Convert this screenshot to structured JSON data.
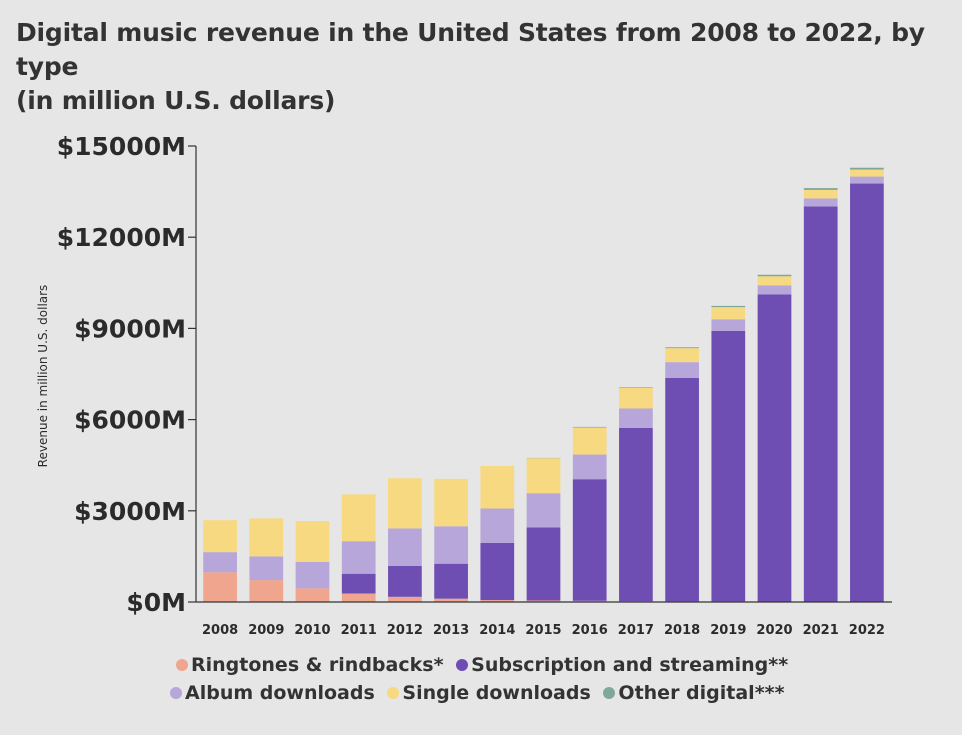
{
  "title_line1": "Digital music revenue in the United States from 2008 to 2022, by type",
  "title_line2": "(in million U.S. dollars)",
  "chart_data": {
    "type": "bar",
    "stacked": true,
    "title": "Digital music revenue in the United States from 2008 to 2022, by type (in million U.S. dollars)",
    "ylabel": "Revenue in million U.S. dollars",
    "xlabel": "",
    "ylim": [
      0,
      15000
    ],
    "yticks": [
      0,
      3000,
      6000,
      9000,
      12000,
      15000
    ],
    "ytick_labels": [
      "$0M",
      "$3000M",
      "$6000M",
      "$9000M",
      "$12000M",
      "$15000M"
    ],
    "categories": [
      "2008",
      "2009",
      "2010",
      "2011",
      "2012",
      "2013",
      "2014",
      "2015",
      "2016",
      "2017",
      "2018",
      "2019",
      "2020",
      "2021",
      "2022"
    ],
    "series": [
      {
        "name": "Ringtones & rindbacks*",
        "color": "#f0a58f",
        "values": [
          980,
          720,
          450,
          280,
          170,
          110,
          65,
          50,
          40,
          25,
          20,
          20,
          15,
          15,
          15
        ]
      },
      {
        "name": "Subscription and streaming**",
        "color": "#6f4eb3",
        "values": [
          0,
          0,
          0,
          650,
          1020,
          1150,
          1880,
          2400,
          4000,
          5700,
          7350,
          8900,
          10100,
          13000,
          13750
        ]
      },
      {
        "name": "Album downloads",
        "color": "#b6a6d9",
        "values": [
          660,
          780,
          870,
          1070,
          1230,
          1230,
          1130,
          1130,
          810,
          640,
          520,
          380,
          300,
          260,
          230
        ]
      },
      {
        "name": "Single downloads",
        "color": "#f7d982",
        "values": [
          1050,
          1250,
          1340,
          1540,
          1650,
          1560,
          1400,
          1150,
          890,
          680,
          460,
          400,
          300,
          280,
          230
        ]
      },
      {
        "name": "Other digital***",
        "color": "#7fa89a",
        "values": [
          0,
          0,
          0,
          0,
          0,
          0,
          0,
          10,
          20,
          20,
          30,
          40,
          50,
          60,
          60
        ]
      }
    ],
    "legend_position": "bottom",
    "grid": false
  },
  "legend": {
    "row1": [
      "Ringtones & rindbacks*",
      "Subscription and streaming**"
    ],
    "row2": [
      "Album downloads",
      "Single downloads",
      "Other digital***"
    ]
  }
}
